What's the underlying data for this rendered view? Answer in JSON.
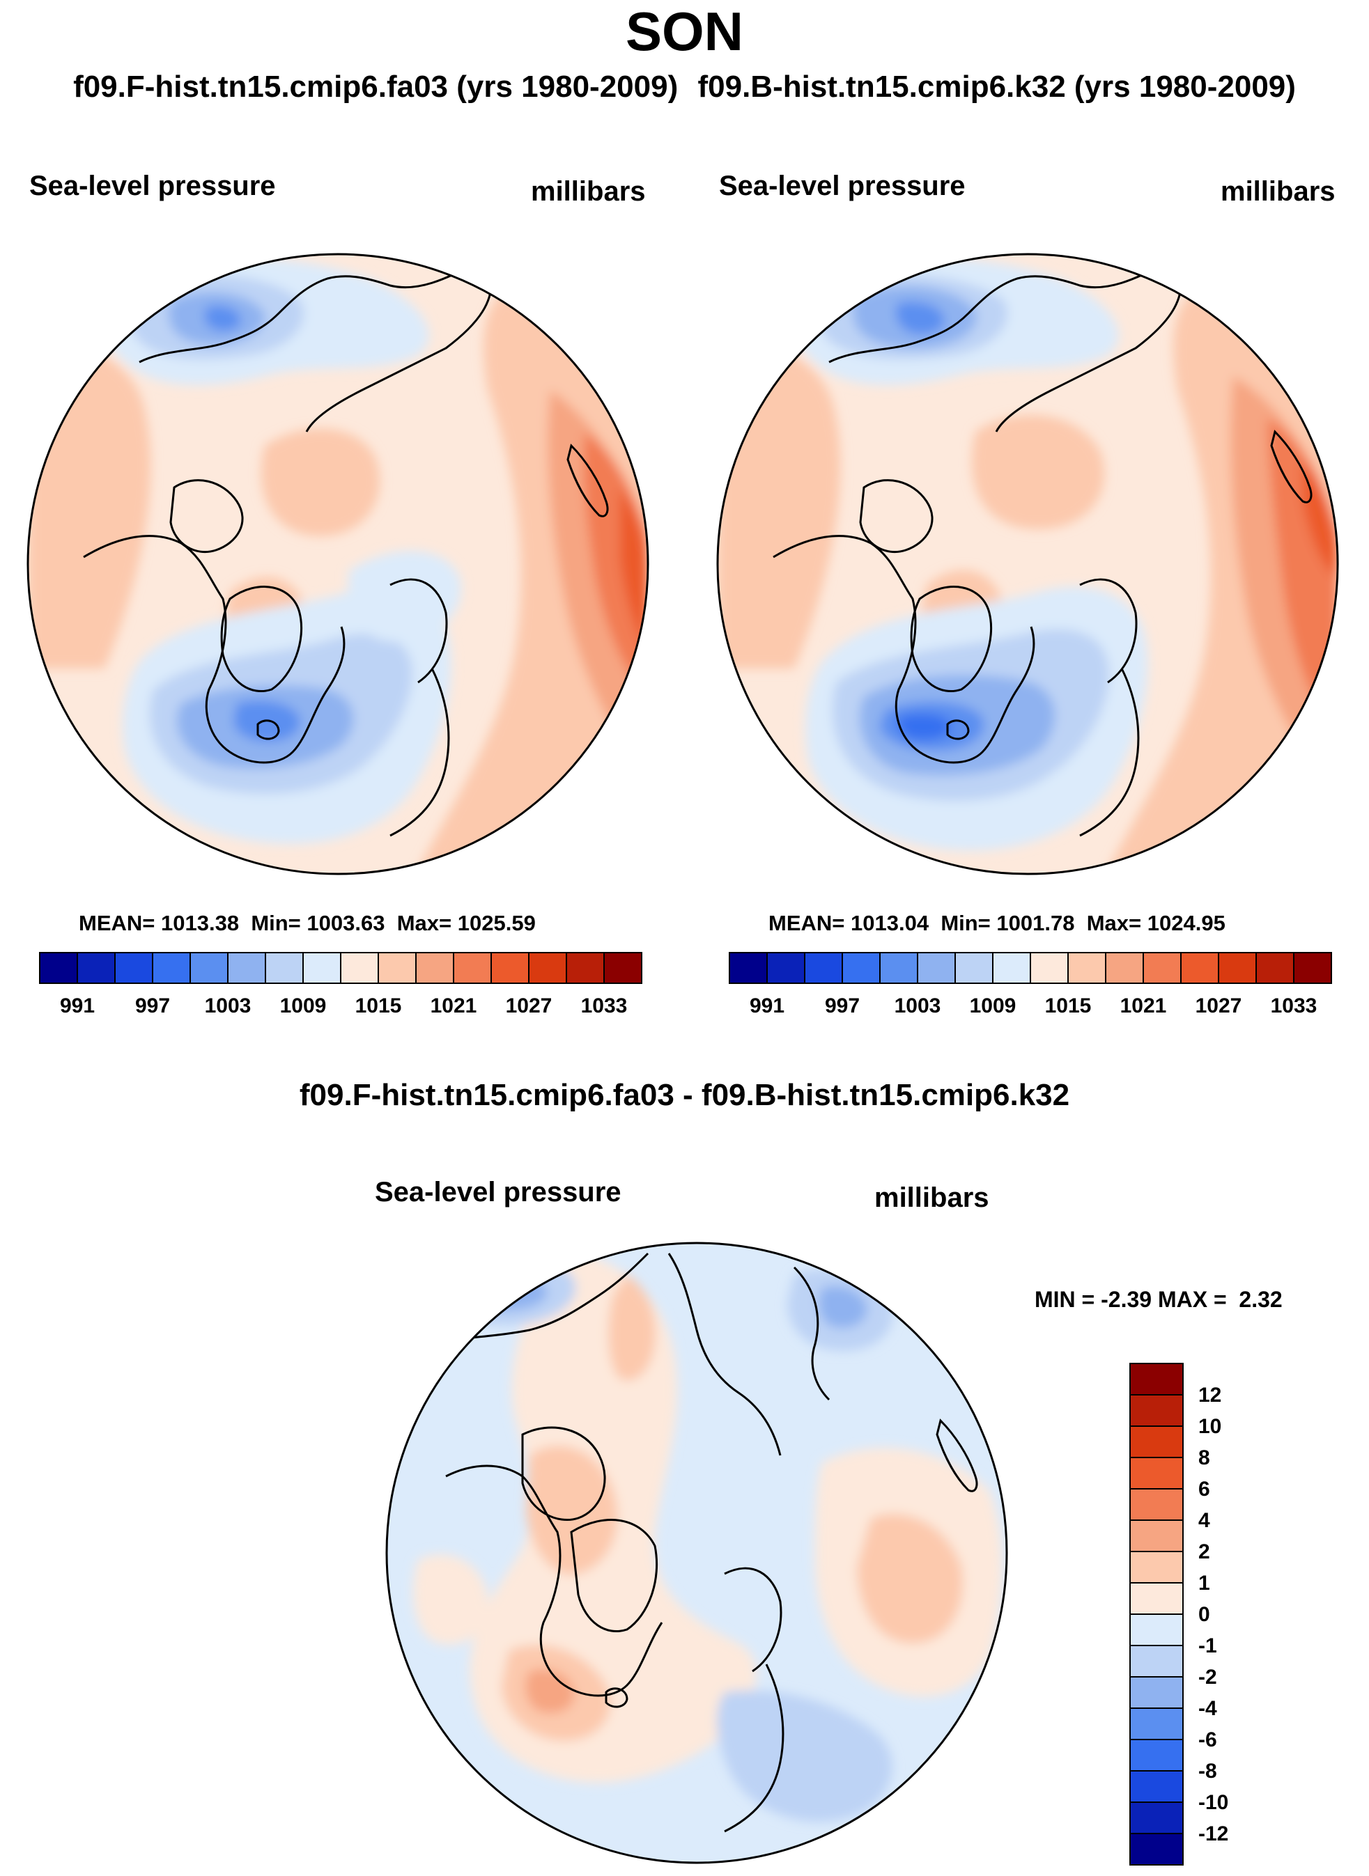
{
  "season": "SON",
  "panels": [
    {
      "case": "f09.F-hist.tn15.cmip6.fa03 (yrs 1980-2009)",
      "variable": "Sea-level pressure",
      "units": "millibars",
      "stats": {
        "mean_label": "MEAN=",
        "mean": "1013.38",
        "min_label": "Min=",
        "min": "1003.63",
        "max_label": "Max=",
        "max": "1025.59"
      }
    },
    {
      "case": "f09.B-hist.tn15.cmip6.k32 (yrs 1980-2009)",
      "variable": "Sea-level pressure",
      "units": "millibars",
      "stats": {
        "mean_label": "MEAN=",
        "mean": "1013.04",
        "min_label": "Min=",
        "min": "1001.78",
        "max_label": "Max=",
        "max": "1024.95"
      }
    }
  ],
  "abs_colorbar": {
    "colors": [
      "#00008b",
      "#0a22b8",
      "#1a49e0",
      "#3670f0",
      "#5b8ff0",
      "#8fb2f0",
      "#bdd3f5",
      "#dcebfb",
      "#fde9dc",
      "#fcc9ad",
      "#f6a582",
      "#f27c53",
      "#ec5a2c",
      "#d93a10",
      "#b81f08",
      "#8b0000"
    ],
    "labels": [
      "991",
      "997",
      "1003",
      "1009",
      "1015",
      "1021",
      "1027",
      "1033"
    ]
  },
  "diff": {
    "title": "f09.F-hist.tn15.cmip6.fa03 - f09.B-hist.tn15.cmip6.k32",
    "variable": "Sea-level pressure",
    "units": "millibars",
    "minmax": {
      "min_label": "MIN =",
      "min": "-2.39",
      "max_label": "MAX =",
      "max": "2.32"
    }
  },
  "diff_colorbar": {
    "colors": [
      "#8b0000",
      "#b81f08",
      "#d93a10",
      "#ec5a2c",
      "#f27c53",
      "#f6a582",
      "#fcc9ad",
      "#fde9dc",
      "#dcebfb",
      "#bdd3f5",
      "#8fb2f0",
      "#5b8ff0",
      "#3670f0",
      "#1a49e0",
      "#0a22b8",
      "#00008b"
    ],
    "labels": [
      "12",
      "10",
      "8",
      "6",
      "4",
      "2",
      "1",
      "0",
      "-1",
      "-2",
      "-4",
      "-6",
      "-8",
      "-10",
      "-12"
    ]
  }
}
